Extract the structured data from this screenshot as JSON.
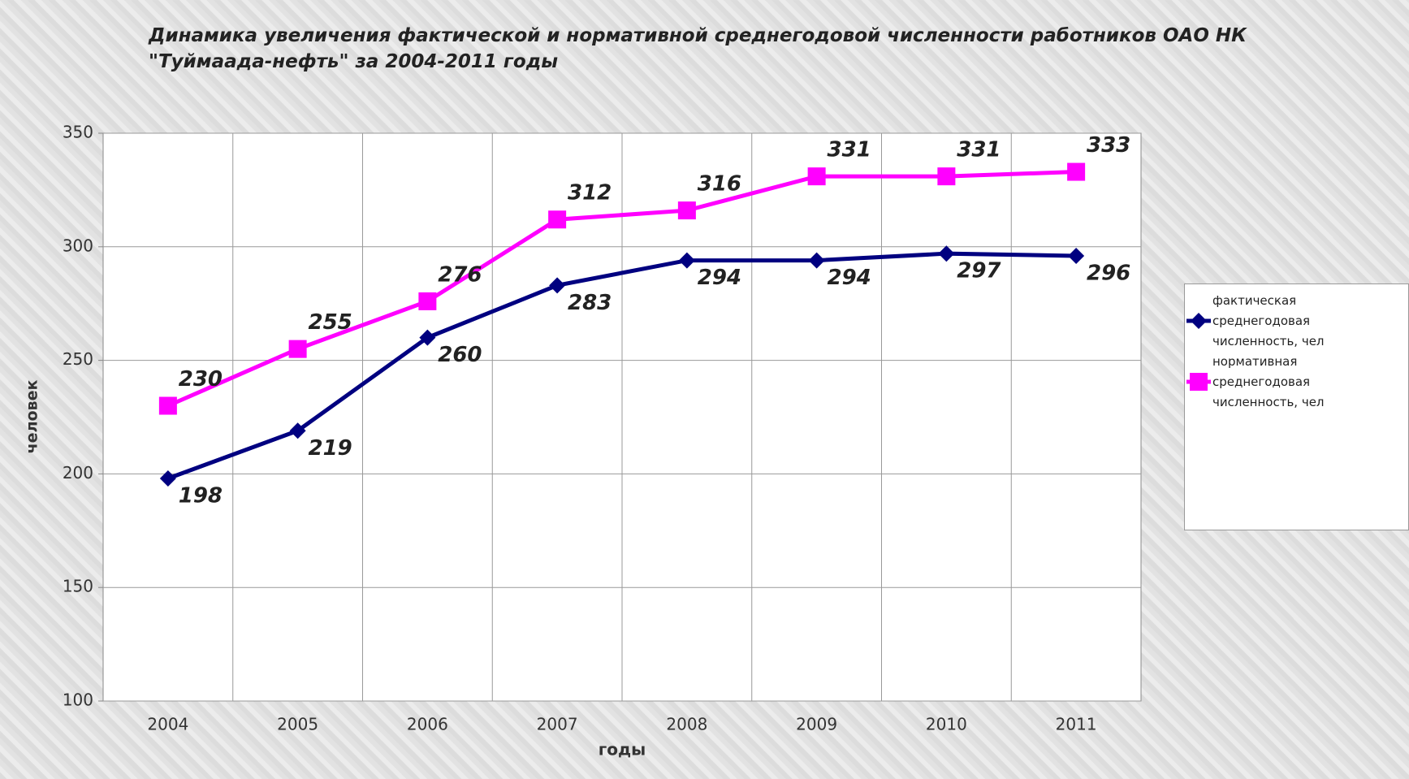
{
  "chart_data": {
    "type": "line",
    "title": "Динамика увеличения фактической и нормативной среднегодовой численности работников ОАО НК \"Туймаада-нефть\" за 2004-2011 годы",
    "xlabel": "годы",
    "ylabel": "человек",
    "categories": [
      "2004",
      "2005",
      "2006",
      "2007",
      "2008",
      "2009",
      "2010",
      "2011"
    ],
    "series": [
      {
        "name": "фактическая среднегодовая численность, чел",
        "color": "#000080",
        "marker": "diamond",
        "values": [
          198,
          219,
          260,
          283,
          294,
          294,
          297,
          296
        ]
      },
      {
        "name": "нормативная среднегодовая численность, чел",
        "color": "#ff00ff",
        "marker": "square",
        "values": [
          230,
          255,
          276,
          312,
          316,
          331,
          331,
          333
        ]
      }
    ],
    "ylim": [
      100,
      350
    ],
    "yticks": [
      100,
      150,
      200,
      250,
      300,
      350
    ],
    "grid": true,
    "legend": "right"
  }
}
